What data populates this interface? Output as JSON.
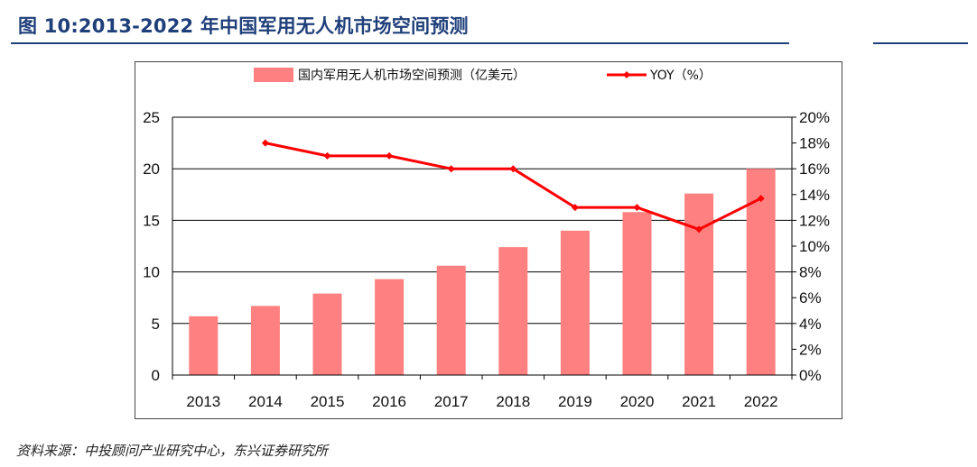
{
  "header": {
    "figure_title": "图 10:2013-2022 年中国军用无人机市场空间预测"
  },
  "footer": {
    "source": "资料来源：中投顾问产业研究中心，东兴证券研究所"
  },
  "colors": {
    "title": "#1f3f7a",
    "bar": "#ff8080",
    "line": "#ff0000",
    "grid": "#000000"
  },
  "chart_data": {
    "type": "bar",
    "categories": [
      "2013",
      "2014",
      "2015",
      "2016",
      "2017",
      "2018",
      "2019",
      "2020",
      "2021",
      "2022"
    ],
    "series": [
      {
        "name": "国内军用无人机市场空间预测（亿美元）",
        "type": "bar",
        "axis": "left",
        "values": [
          5.7,
          6.7,
          7.9,
          9.3,
          10.6,
          12.4,
          14.0,
          15.8,
          17.6,
          20.0
        ]
      },
      {
        "name": "YOY（%）",
        "type": "line",
        "axis": "right",
        "values": [
          null,
          18,
          17,
          17,
          16,
          16,
          13,
          13,
          11.3,
          13.7
        ]
      }
    ],
    "y_left": {
      "range": [
        0,
        25
      ],
      "ticks": [
        "0",
        "5",
        "10",
        "15",
        "20",
        "25"
      ]
    },
    "y_right": {
      "range": [
        0,
        20
      ],
      "ticks": [
        "0%",
        "2%",
        "4%",
        "6%",
        "8%",
        "10%",
        "12%",
        "14%",
        "16%",
        "18%",
        "20%"
      ]
    },
    "grid": "horizontal",
    "legend_position": "top"
  }
}
